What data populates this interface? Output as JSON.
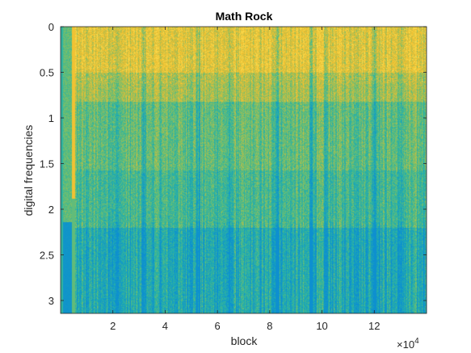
{
  "chart_data": {
    "type": "heatmap",
    "title": "Math Rock",
    "xlabel": "block",
    "ylabel": "digital frequencies",
    "x_exponent_label": "×10",
    "x_exponent_power": "4",
    "xlim": [
      0,
      14
    ],
    "ylim": [
      0,
      3.1416
    ],
    "y_direction": "reversed",
    "x_ticks": [
      2,
      4,
      6,
      8,
      10,
      12
    ],
    "x_tick_labels": [
      "2",
      "4",
      "6",
      "8",
      "10",
      "12"
    ],
    "y_ticks": [
      0,
      0.5,
      1,
      1.5,
      2,
      2.5,
      3
    ],
    "y_tick_labels": [
      "0",
      "0.5",
      "1",
      "1.5",
      "2",
      "2.5",
      "3"
    ],
    "colormap": [
      "#0d8fd0",
      "#1ba6b8",
      "#35b59a",
      "#74bf6c",
      "#b8bd4a",
      "#f0c030",
      "#f8d84a"
    ],
    "grid": false
  }
}
